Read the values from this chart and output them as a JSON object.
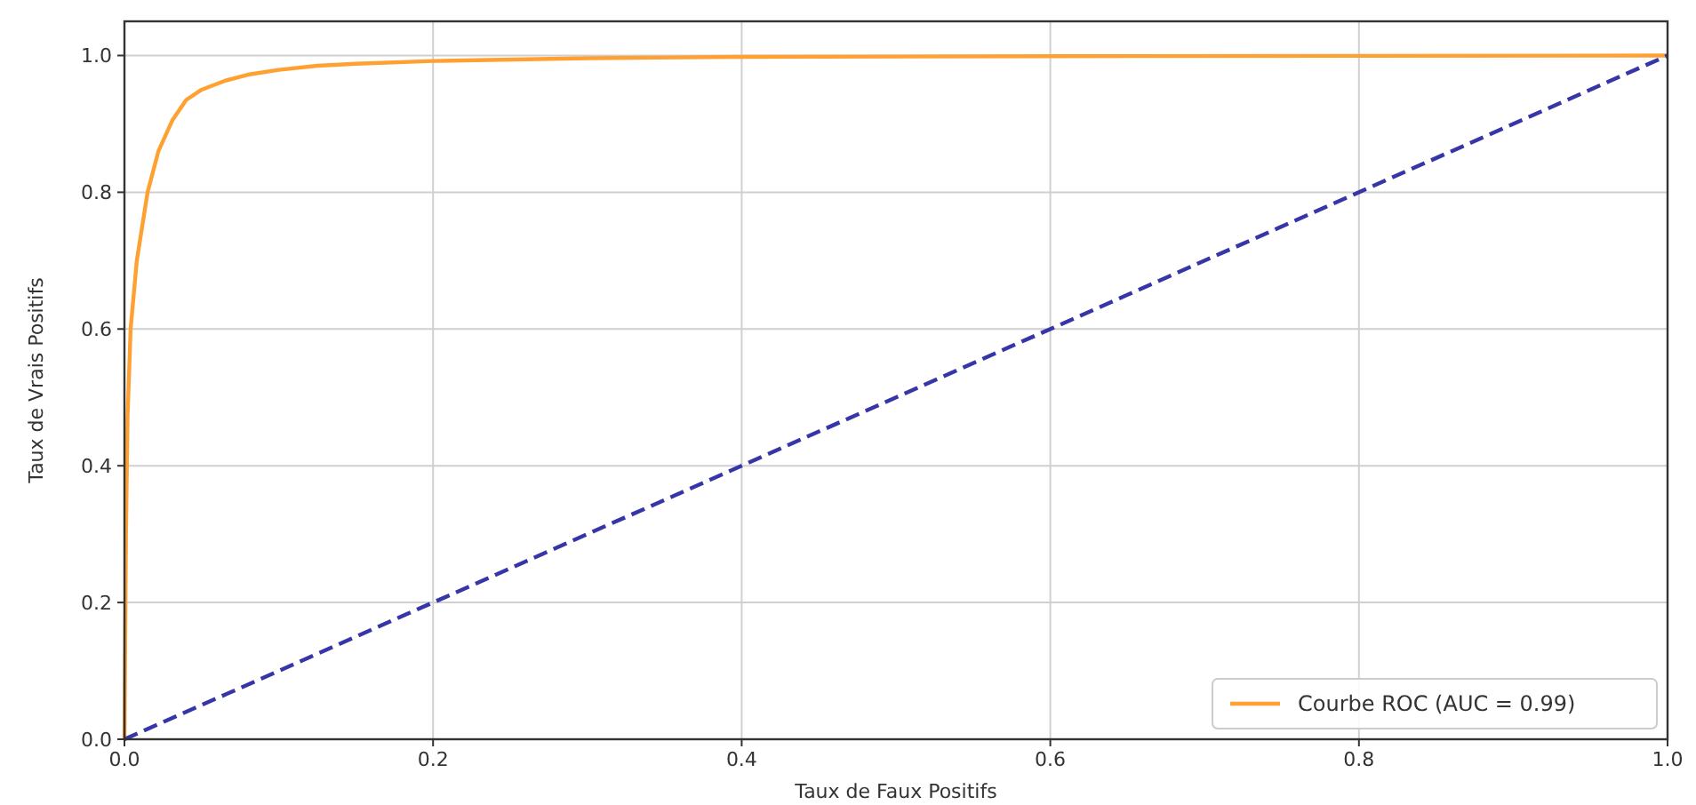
{
  "chart_data": {
    "type": "line",
    "xlabel": "Taux de Faux Positifs",
    "ylabel": "Taux de Vrais Positifs",
    "xlim": [
      0,
      1
    ],
    "ylim": [
      0,
      1.05
    ],
    "xticks": [
      {
        "value": 0,
        "label": "0.0"
      },
      0.2,
      0.4,
      0.6,
      0.8,
      {
        "value": 1,
        "label": "1.0"
      }
    ],
    "yticks": [
      {
        "value": 0,
        "label": "0.0"
      },
      0.2,
      0.4,
      0.6,
      0.8,
      {
        "value": 1,
        "label": "1.0"
      }
    ],
    "grid": true,
    "legend": "bottom right",
    "series": [
      {
        "name": "Courbe ROC (AUC = 0.99)",
        "color": "#ffa033",
        "line_style": "solid",
        "x": [
          0,
          0.001,
          0.002,
          0.004,
          0.008,
          0.015,
          0.022,
          0.031,
          0.04,
          0.05,
          0.065,
          0.08,
          0.1,
          0.125,
          0.15,
          0.2,
          0.3,
          0.4,
          0.6,
          1
        ],
        "values": [
          0,
          0.3,
          0.47,
          0.6,
          0.7,
          0.8,
          0.86,
          0.905,
          0.935,
          0.95,
          0.963,
          0.972,
          0.979,
          0.985,
          0.988,
          0.992,
          0.996,
          0.998,
          0.999,
          1
        ]
      },
      {
        "color": "#3636a8",
        "line_style": "dashed",
        "x": [
          0,
          1
        ],
        "values": [
          0,
          1
        ]
      }
    ]
  }
}
